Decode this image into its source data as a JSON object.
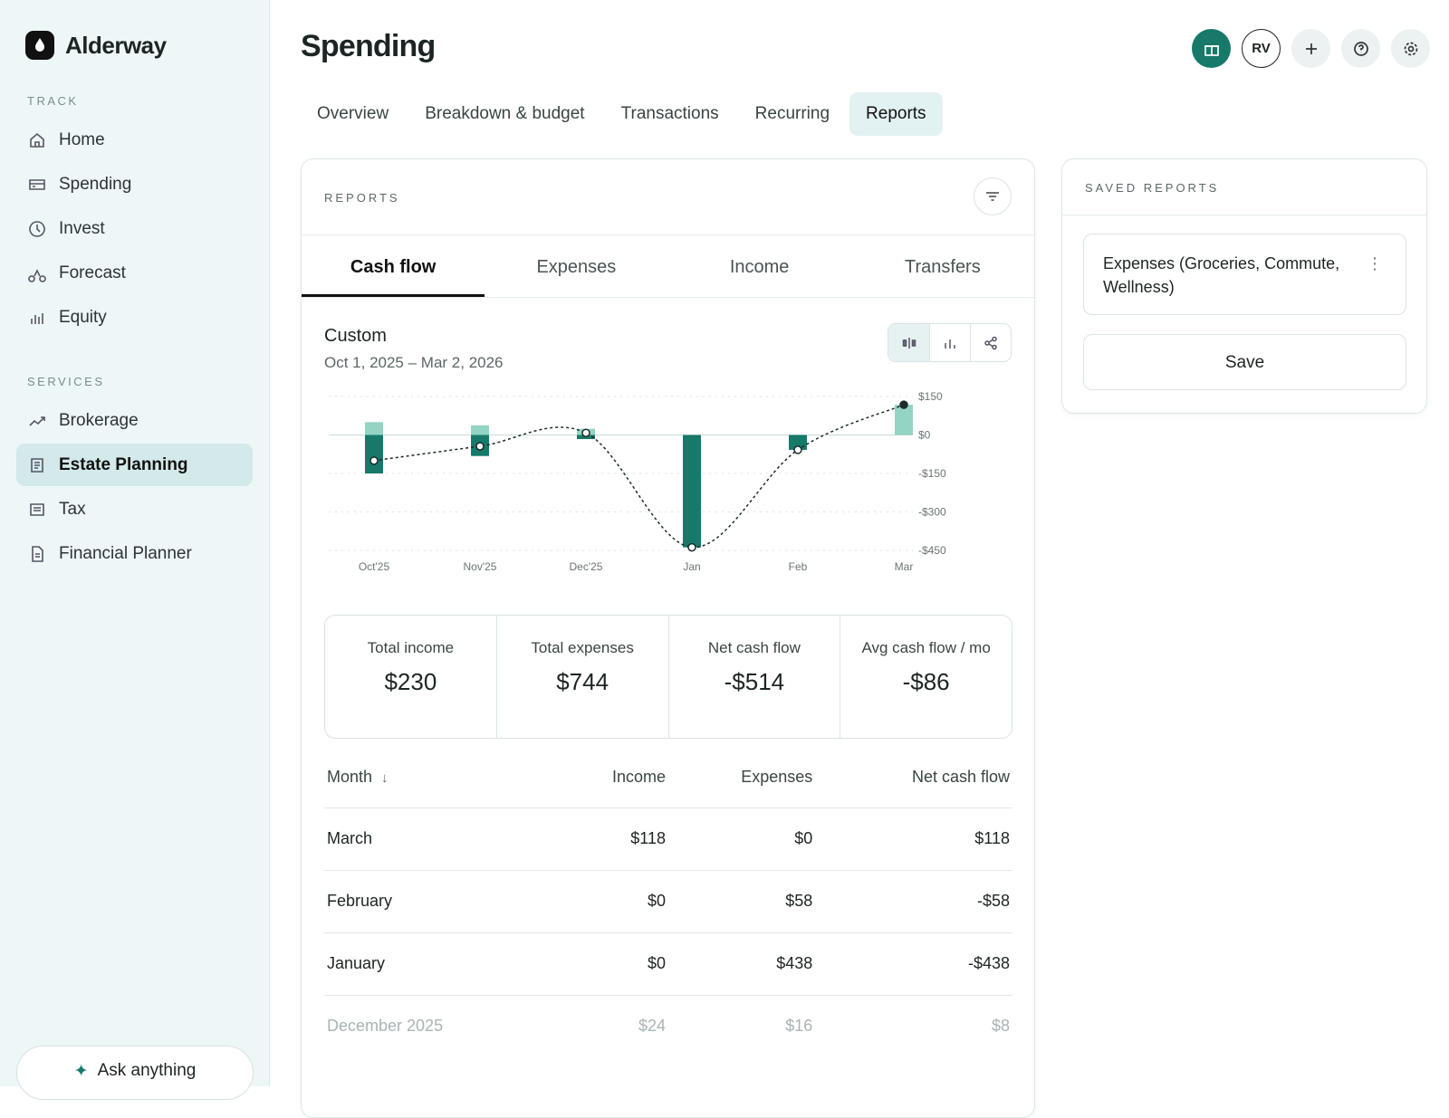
{
  "sidebar": {
    "brand": "Alderway",
    "sections": [
      {
        "heading": "TRACK",
        "items": [
          "Home",
          "Spending",
          "Invest",
          "Forecast",
          "Equity"
        ]
      },
      {
        "heading": "SERVICES",
        "items": [
          "Brokerage",
          "Estate Planning",
          "Tax",
          "Financial Planner"
        ]
      }
    ],
    "active_item": "1.1",
    "ask": "Ask anything"
  },
  "header": {
    "title": "Spending",
    "avatar": "RV"
  },
  "tabs": [
    "Overview",
    "Breakdown & budget",
    "Transactions",
    "Recurring",
    "Reports"
  ],
  "active_tab": 4,
  "reports": {
    "heading": "REPORTS",
    "tabs": [
      "Cash flow",
      "Expenses",
      "Income",
      "Transfers"
    ],
    "active_tab": 0,
    "range_title": "Custom",
    "range": "Oct 1, 2025 – Mar 2, 2026",
    "summary": [
      {
        "label": "Total income",
        "value": "$230"
      },
      {
        "label": "Total expenses",
        "value": "$744"
      },
      {
        "label": "Net cash flow",
        "value": "-$514"
      },
      {
        "label": "Avg cash flow / mo",
        "value": "-$86"
      }
    ],
    "table": {
      "columns": [
        "Month",
        "Income",
        "Expenses",
        "Net cash flow"
      ],
      "rows": [
        [
          "March",
          "$118",
          "$0",
          "$118"
        ],
        [
          "February",
          "$0",
          "$58",
          "-$58"
        ],
        [
          "January",
          "$0",
          "$438",
          "-$438"
        ],
        [
          "December 2025",
          "$24",
          "$16",
          "$8"
        ]
      ]
    }
  },
  "chart_data": {
    "type": "bar",
    "categories": [
      "Oct'25",
      "Nov'25",
      "Dec'25",
      "Jan",
      "Feb",
      "Mar"
    ],
    "series": [
      {
        "name": "Income",
        "color": "#93d4c4",
        "values": [
          50,
          38,
          24,
          0,
          0,
          118
        ]
      },
      {
        "name": "Expenses",
        "color": "#17796a",
        "values": [
          -150,
          -82,
          -16,
          -438,
          -58,
          0
        ]
      },
      {
        "name": "Net cash flow",
        "color": "#1c2a2a",
        "type": "line",
        "values": [
          -100,
          -44,
          8,
          -438,
          -58,
          118
        ]
      }
    ],
    "ylim": [
      -450,
      150
    ],
    "yticks": [
      {
        "value": 150,
        "label": "$150"
      },
      {
        "value": 0,
        "label": "$0"
      },
      {
        "value": -150,
        "label": "-$150"
      },
      {
        "value": -300,
        "label": "-$300"
      },
      {
        "value": -450,
        "label": "-$450"
      }
    ],
    "grid": true
  },
  "saved": {
    "heading": "SAVED REPORTS",
    "items": [
      "Expenses (Groceries, Commute, Wellness)"
    ],
    "save": "Save"
  }
}
